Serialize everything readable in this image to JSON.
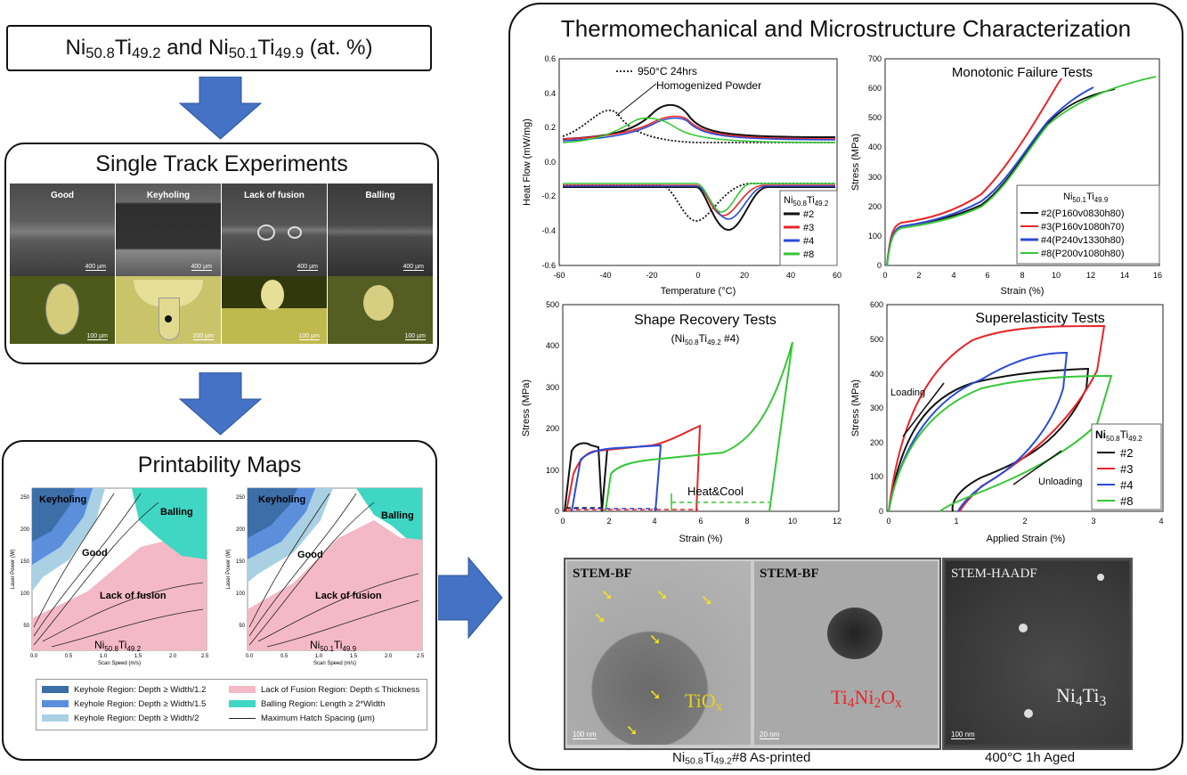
{
  "left": {
    "alloy_title": {
      "ni1": "Ni",
      "sub1": "50.8",
      "ti1": "Ti",
      "sub2": "49.2",
      "mid": " and Ni",
      "sub3": "50.1",
      "ti2": "Ti",
      "sub4": "49.9",
      "suffix": " (at. %)"
    },
    "single_track": {
      "title": "Single Track Experiments",
      "panels": [
        "Good",
        "Keyholing",
        "Lack of fusion",
        "Balling"
      ],
      "top_scale": "400 µm",
      "bottom_scales": [
        "100 µm",
        "200 µm",
        "100 µm",
        "100 µm"
      ]
    },
    "printability": {
      "title": "Printability Maps",
      "map_left": {
        "alloy": "Ni",
        "sub1": "50.8",
        "ti": "Ti",
        "sub2": "49.2",
        "regions": [
          "Keyholing",
          "Balling",
          "Good",
          "Lack of fusion"
        ]
      },
      "map_right": {
        "alloy": "Ni",
        "sub1": "50.1",
        "ti": "Ti",
        "sub2": "49.9",
        "regions": [
          "Keyholing",
          "Balling",
          "Good",
          "Lack of fusion"
        ]
      },
      "xlabel": "Scan Speed (m/s)",
      "ylabel": "Laser Power (W)",
      "xticks": [
        "0.0",
        "0.5",
        "1.0",
        "1.5",
        "2.0",
        "2.5"
      ],
      "yticks": [
        "50",
        "100",
        "150",
        "200",
        "250"
      ],
      "legend": [
        {
          "label": "Keyhole Region: Depth ≥ Width/1.2",
          "color": "#3c6ea8"
        },
        {
          "label": "Lack of Fusion Region: Depth ≤ Thickness",
          "color": "#f4b9c6"
        },
        {
          "label": "Keyhole Region: Depth ≥ Width/1.5",
          "color": "#5b8fdc"
        },
        {
          "label": "Balling Region: Length ≥ 2*Width",
          "color": "#3fd6c4"
        },
        {
          "label": "Keyhole Region: Depth ≥ Width/2",
          "color": "#a9d1e3"
        },
        {
          "label": "Maximum Hatch Spacing (µm)",
          "color": "#222222"
        }
      ]
    }
  },
  "right": {
    "title": "Thermomechanical and Microstructure Characterization",
    "dsc": {
      "ylabel": "Heat Flow (mW/mg)",
      "xlabel": "Temperature (°C)",
      "xticks": [
        "-60",
        "-40",
        "-20",
        "0",
        "20",
        "40",
        "60"
      ],
      "yticks": [
        "0.6",
        "0.4",
        "0.2",
        "0.0",
        "-0.2",
        "-0.4",
        "-0.6"
      ],
      "annotation1": "950°C 24hrs",
      "annotation2": "Homogenized Powder",
      "legend_title": {
        "a": "Ni",
        "s1": "50.8",
        "b": "Ti",
        "s2": "49.2"
      },
      "legend": [
        "#2",
        "#3",
        "#4",
        "#8"
      ]
    },
    "monotonic": {
      "title": "Monotonic Failure Tests",
      "ylabel": "Stress (MPa)",
      "xlabel": "Strain (%)",
      "xticks": [
        "0",
        "2",
        "4",
        "6",
        "8",
        "10",
        "12",
        "14",
        "16"
      ],
      "yticks": [
        "0",
        "100",
        "200",
        "300",
        "400",
        "500",
        "600",
        "700"
      ],
      "legend_title": {
        "a": "Ni",
        "s1": "50.1",
        "b": "Ti",
        "s2": "49.9"
      },
      "legend": [
        "#2(P160v0830h80)",
        "#3(P160v1080h70)",
        "#4(P240v1330h80)",
        "#8(P200v1080h80)"
      ]
    },
    "shape_recovery": {
      "title": "Shape Recovery Tests",
      "subtitle": {
        "open": "(Ni",
        "s1": "50.8",
        "b": "Ti",
        "s2": "49.2",
        "close": " #4)"
      },
      "ylabel": "Stress (MPa)",
      "xlabel": "Strain (%)",
      "xticks": [
        "0",
        "2",
        "4",
        "6",
        "8",
        "10",
        "12"
      ],
      "yticks": [
        "0",
        "100",
        "200",
        "300",
        "400",
        "500"
      ],
      "annotation": "Heat&Cool"
    },
    "superelastic": {
      "title": "Superelasticity Tests",
      "ylabel": "Stress (MPa)",
      "xlabel": "Applied Strain (%)",
      "xticks": [
        "0",
        "1",
        "2",
        "3",
        "4"
      ],
      "yticks": [
        "0",
        "100",
        "200",
        "300",
        "400",
        "500",
        "600"
      ],
      "loading": "Loading",
      "unloading": "Unloading",
      "legend_title": {
        "a": "Ni",
        "s1": "50.8",
        "b": "Ti",
        "s2": "49.2"
      },
      "legend": [
        "#2",
        "#3",
        "#4",
        "#8"
      ]
    },
    "stem": {
      "panels": [
        {
          "label": "STEM-BF",
          "phase": "TiO",
          "phase_sub": "x",
          "scale": "100 nm"
        },
        {
          "label": "STEM-BF",
          "phase": "Ti",
          "s1": "4",
          "phase2": "Ni",
          "s2": "2",
          "phase3": "O",
          "s3": "x",
          "scale": "20 nm"
        },
        {
          "label": "STEM-HAADF",
          "phase": "Ni",
          "s1": "4",
          "phase2": "Ti",
          "s2": "3",
          "scale": "100 nm"
        }
      ],
      "caption_left": {
        "a": "Ni",
        "s1": "50.8",
        "b": "Ti",
        "s2": "49.2",
        "c": "#8   As-printed"
      },
      "caption_right": "400°C 1h Aged"
    }
  },
  "colors": {
    "arrow": "#4472c4",
    "black": "#111111",
    "red": "#e8262a",
    "blue": "#2a4bd6",
    "green": "#35c735"
  }
}
